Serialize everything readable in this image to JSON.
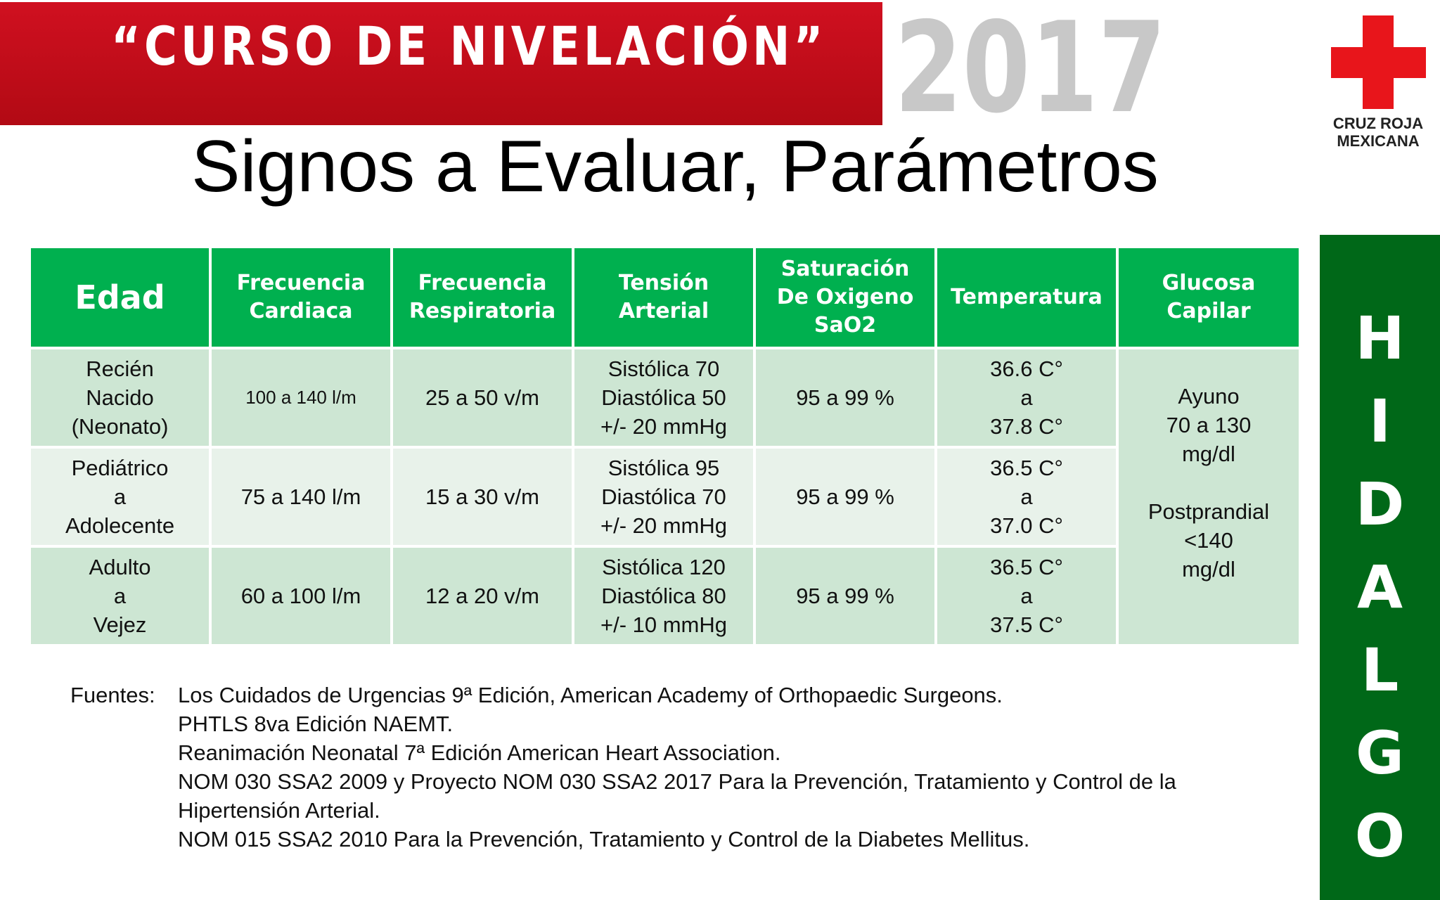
{
  "banner": {
    "title": "“CURSO DE NIVELACIÓN”",
    "year": "2017"
  },
  "logo": {
    "line1": "CRUZ ROJA",
    "line2": "MEXICANA",
    "cross_color": "#e8151b"
  },
  "side_band": {
    "letters": [
      "H",
      "I",
      "D",
      "A",
      "L",
      "G",
      "O"
    ],
    "color": "#006818"
  },
  "title": "Signos a Evaluar, Parámetros",
  "table": {
    "header_color": "#00b04f",
    "headers": [
      [
        "Edad"
      ],
      [
        "Frecuencia",
        "Cardiaca"
      ],
      [
        "Frecuencia",
        "Respiratoria"
      ],
      [
        "Tensión",
        "Arterial"
      ],
      [
        "Saturación",
        "De Oxigeno",
        "SaO2"
      ],
      [
        "Temperatura"
      ],
      [
        "Glucosa",
        "Capilar"
      ]
    ],
    "rows": [
      {
        "edad": [
          "Recién",
          "Nacido",
          "(Neonato)"
        ],
        "fc": "100 a 140 l/m",
        "fr": "25 a 50 v/m",
        "ta": [
          "Sistólica 70",
          "Diastólica 50",
          "+/- 20 mmHg"
        ],
        "sat": "95 a 99 %",
        "temp": [
          "36.6 C°",
          "a",
          "37.8 C°"
        ]
      },
      {
        "edad": [
          "Pediátrico",
          "a",
          "Adolecente"
        ],
        "fc": "75 a 140 l/m",
        "fr": "15 a 30 v/m",
        "ta": [
          "Sistólica 95",
          "Diastólica 70",
          "+/- 20 mmHg"
        ],
        "sat": "95 a 99 %",
        "temp": [
          "36.5 C°",
          "a",
          "37.0 C°"
        ]
      },
      {
        "edad": [
          "Adulto",
          "a",
          "Vejez"
        ],
        "fc": "60 a 100 l/m",
        "fr": "12 a 20 v/m",
        "ta": [
          "Sistólica 120",
          "Diastólica 80",
          "+/- 10 mmHg"
        ],
        "sat": "95 a 99 %",
        "temp": [
          "36.5 C°",
          "a",
          "37.5 C°"
        ]
      }
    ],
    "glucosa": {
      "ayuno": [
        "Ayuno",
        "70 a 130",
        "mg/dl"
      ],
      "postprandial": [
        "Postprandial",
        "<140",
        "mg/dl"
      ]
    }
  },
  "sources": {
    "prefix": "Fuentes:",
    "lines": [
      "Los Cuidados de Urgencias 9ª Edición, American Academy of Orthopaedic Surgeons.",
      "PHTLS 8va Edición NAEMT.",
      "Reanimación Neonatal 7ª Edición American Heart Association.",
      "NOM 030 SSA2 2009 y Proyecto NOM 030 SSA2 2017 Para la Prevención, Tratamiento y Control de la",
      "Hipertensión Arterial.",
      "NOM 015 SSA2 2010 Para la Prevención, Tratamiento y Control de la Diabetes Mellitus."
    ]
  }
}
